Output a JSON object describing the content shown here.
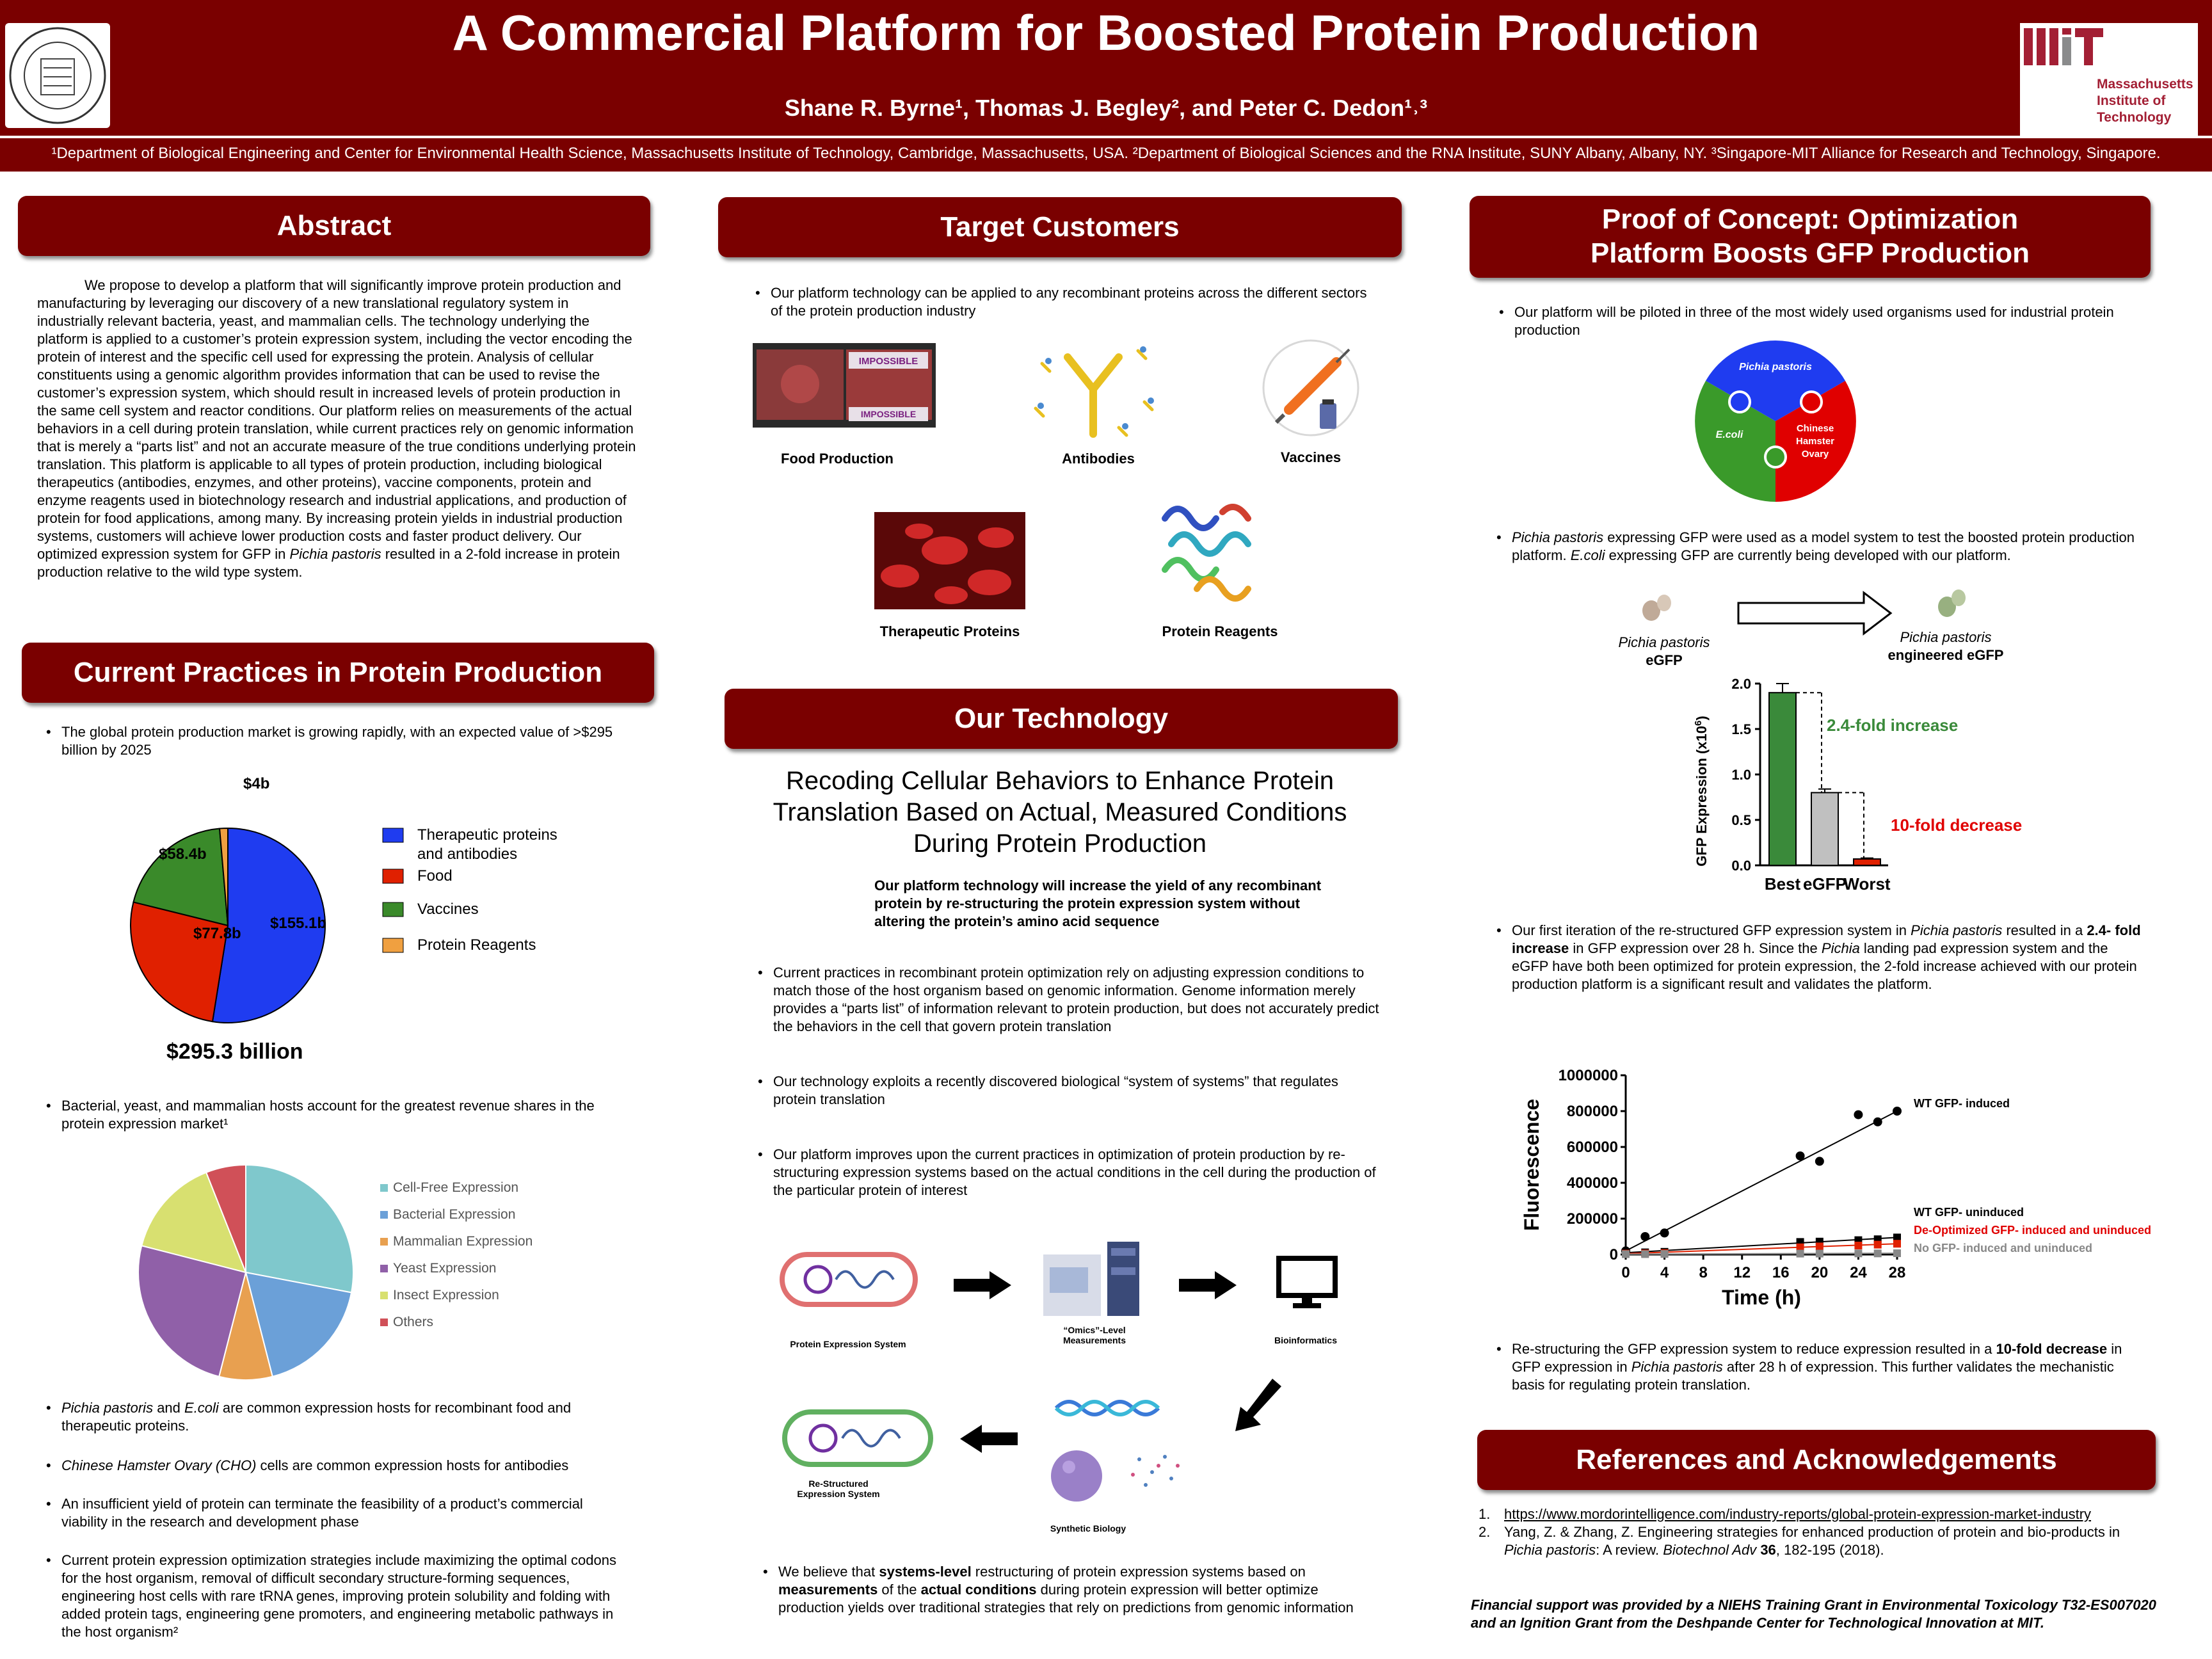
{
  "header": {
    "title": "A Commercial Platform for Boosted Protein Production",
    "authors": "Shane R. Byrne¹, Thomas J. Begley², and  Peter C. Dedon¹˒³",
    "affiliations": "¹Department of Biological Engineering and Center for Environmental Health Science, Massachusetts Institute of Technology, Cambridge, Massachusetts, USA.  ²Department of Biological Sciences and the RNA Institute, SUNY Albany, Albany, NY.  ³Singapore-MIT Alliance for Research and Technology, Singapore.",
    "mit_name_1": "Massachusetts",
    "mit_name_2": "Institute of",
    "mit_name_3": "Technology",
    "seal_text": "MASSACHUSETTS INSTITUTE OF TECHNOLOGY"
  },
  "abstract": {
    "heading": "Abstract",
    "p1": "We propose to develop a platform that will significantly improve protein production and manufacturing by leveraging our discovery of a new translational regulatory system in industrially relevant bacteria, yeast, and mammalian cells. The technology underlying the platform is applied to a customer’s protein expression system, including the vector encoding the protein of interest and the specific cell used for expressing the protein. Analysis of cellular constituents using a genomic algorithm provides information that can be used to revise the customer’s expression system, which should result in increased levels of protein production in the same cell system and reactor conditions. Our platform relies on measurements of the actual behaviors in a cell during protein translation, while current practices rely on genomic information that is merely a “parts list” and not an accurate measure of the true conditions underlying protein translation. This platform is applicable to all types of protein production, including biological therapeutics (antibodies, enzymes, and other proteins), vaccine components, protein and enzyme reagents used in biotechnology research and industrial applications, and production of protein for food applications, among many. By increasing protein yields in industrial production systems, customers will achieve lower production costs and faster product delivery. Our optimized expression system for GFP in ",
    "p1_italic": "Pichia pastoris",
    "p1_end": " resulted in a 2-fold increase in protein production relative to the wild type system."
  },
  "current": {
    "heading": "Current Practices in Protein Production",
    "bullet1": "The global protein production market is growing rapidly, with an expected value of >$295 billion by 2025",
    "total": "$295.3 billion",
    "bullet2": "Bacterial, yeast, and mammalian hosts account for the greatest revenue shares in the protein expression market¹",
    "b3_i1": "Pichia pastoris",
    "b3_mid": " and ",
    "b3_i2": "E.coli",
    "b3_end": " are common expression hosts for recombinant food and therapeutic proteins.",
    "b4_i": "Chinese Hamster Ovary (CHO)",
    "b4_end": " cells are common expression hosts for antibodies",
    "bullet5": "An insufficient yield of protein can terminate the feasibility of a product’s commercial viability in the research and development phase",
    "bullet6": "Current protein expression optimization strategies include maximizing the optimal codons for the host organism, removal of difficult secondary structure-forming sequences, engineering host cells with rare tRNA genes, improving protein solubility and folding with added protein tags, engineering gene promoters, and engineering metabolic pathways in the host organism²"
  },
  "target": {
    "heading": "Target Customers",
    "bullet1": "Our platform technology can be applied to any recombinant proteins across the different sectors of the protein production industry",
    "label_food": "Food Production",
    "label_antibodies": "Antibodies",
    "label_vaccines": "Vaccines",
    "label_therapeutic": "Therapeutic Proteins",
    "label_reagents": "Protein Reagents",
    "impossible_1": "IMPOSSIBLE",
    "impossible_2": "IMPOSSIBLE"
  },
  "technology": {
    "heading": "Our Technology",
    "subtitle": "Recoding Cellular Behaviors to Enhance Protein Translation Based on Actual, Measured Conditions During Protein Production",
    "bold_statement": "Our platform technology will increase the yield of any recombinant protein by re-structuring the protein expression system without altering the protein’s amino acid sequence",
    "bullet1": "Current practices in recombinant protein optimization rely on adjusting expression conditions to match those of the host organism based on genomic information. Genome information merely provides a “parts list” of information relevant to protein production, but does not accurately predict the behaviors in the cell that govern protein translation",
    "bullet2": "Our technology exploits a recently discovered biological “system of systems” that regulates protein translation",
    "bullet3": "Our platform improves upon the current practices in optimization of protein production by re-structuring expression systems based on the actual conditions in the cell during the production of the particular protein of interest",
    "flow_pes": "Protein Expression System",
    "flow_omics_1": "“Omics”-Level",
    "flow_omics_2": "Measurements",
    "flow_bioinf": "Bioinformatics",
    "flow_restructured_1": "Re-Structured",
    "flow_restructured_2": "Expression System",
    "flow_synbio": "Synthetic Biology",
    "b4_a": "We believe that ",
    "b4_b": "systems-level",
    "b4_c": " restructuring of protein expression systems based on ",
    "b4_d": "measurements",
    "b4_e": " of the ",
    "b4_f": "actual conditions",
    "b4_g": " during protein expression will better optimize production yields over traditional strategies that rely on predictions from genomic information"
  },
  "proof": {
    "heading_1": "Proof of Concept: Optimization",
    "heading_2": "Platform Boosts GFP Production",
    "bullet1": "Our platform will be piloted in three of the most widely used organisms used for industrial protein production",
    "puzzle_pichia": "Pichia pastoris",
    "puzzle_ecoli": "E.coli",
    "puzzle_cho_1": "Chinese",
    "puzzle_cho_2": "Hamster",
    "puzzle_cho_3": "Ovary",
    "b2_i1": "Pichia pastoris",
    "b2_mid": " expressing GFP were used as a model system to test the boosted protein production platform. ",
    "b2_i2": "E.coli",
    "b2_end": " expressing GFP are currently being developed with our platform.",
    "left_org": "Pichia pastoris",
    "left_label": "eGFP",
    "right_org": "Pichia pastoris",
    "right_label": "engineered eGFP",
    "increase_label": "2.4-fold increase",
    "decrease_label": "10-fold decrease",
    "b3_a": "Our first iteration of the re-structured GFP expression system in ",
    "b3_i1": "Pichia pastoris",
    "b3_b": " resulted in a ",
    "b3_bold": "2.4- fold increase",
    "b3_c": " in GFP expression over 28 h. Since the ",
    "b3_i2": "Pichia",
    "b3_d": " landing pad expression system and the eGFP have both been optimized for protein expression, the 2-fold increase achieved with our protein production platform is a significant result and validates the platform.",
    "b4_a": "Re-structuring the GFP expression system to reduce expression resulted in a ",
    "b4_bold": "10-fold decrease",
    "b4_b": " in GFP expression in ",
    "b4_i": "Pichia pastoris",
    "b4_c": " after 28 h of expression. This further validates the mechanistic basis for regulating protein translation."
  },
  "references": {
    "heading": "References and Acknowledgements",
    "ref1_num": "1.",
    "ref1": "https://www.mordorintelligence.com/industry-reports/global-protein-expression-market-industry",
    "ref2_num": "2.",
    "ref2_a": "Yang, Z. & Zhang, Z. Engineering strategies for enhanced production of protein and bio-products in ",
    "ref2_i": "Pichia pastoris",
    "ref2_b": ": A review. ",
    "ref2_i2": "Biotechnol Adv",
    "ref2_c": " 36",
    "ref2_d": ", 182-195 (2018).",
    "funding": "Financial support was provided by a NIEHS Training Grant in Environmental Toxicology T32-ES007020 and an Ignition Grant from the Deshpande Center for Technological Innovation at MIT."
  },
  "colors": {
    "maroon": "#7a0000",
    "blue": "#1f3cf0",
    "red": "#e02000",
    "green": "#3a8a2a",
    "orange": "#f0a040"
  },
  "chart_data": [
    {
      "type": "pie",
      "categories": [
        "Therapeutic proteins and antibodies",
        "Food",
        "Vaccines",
        "Protein Reagents"
      ],
      "values": [
        155.1,
        77.8,
        58.4,
        4
      ],
      "value_labels": [
        "$155.1b",
        "$77.8b",
        "$58.4b",
        "$4b"
      ],
      "colors": [
        "#1f3cf0",
        "#e02000",
        "#3a8a2a",
        "#f0a040"
      ],
      "legend": "right"
    },
    {
      "type": "pie",
      "categories": [
        "Cell-Free Expression",
        "Bacterial Expression",
        "Mammalian Expression",
        "Yeast Expression",
        "Insect Expression",
        "Others"
      ],
      "values": [
        28,
        18,
        8,
        25,
        15,
        6
      ],
      "colors": [
        "#7fc8cc",
        "#6ba0d8",
        "#e8a050",
        "#9060a8",
        "#d8e070",
        "#d05058"
      ],
      "legend": "right"
    },
    {
      "type": "bar",
      "categories": [
        "Best",
        "eGFP",
        "Worst"
      ],
      "values": [
        1.9,
        0.8,
        0.07
      ],
      "errors": [
        0.1,
        0.04,
        0.01
      ],
      "colors": [
        "#3a8a3a",
        "#c0c0c0",
        "#e02000"
      ],
      "ylabel_main": "GFP Expression (x10",
      "ylabel_sup": "6",
      "ylabel_end": ")",
      "ylim": [
        0,
        2.0
      ],
      "yticks": [
        "0.0",
        "0.5",
        "1.0",
        "1.5",
        "2.0"
      ]
    },
    {
      "type": "line",
      "xlabel": "Time (h)",
      "ylabel": "Fluorescence",
      "xlim": [
        0,
        28
      ],
      "ylim": [
        0,
        1000000
      ],
      "xticks": [
        "0",
        "4",
        "8",
        "12",
        "16",
        "20",
        "24",
        "28"
      ],
      "yticks": [
        "0",
        "200000",
        "400000",
        "600000",
        "800000",
        "1000000"
      ],
      "series": [
        {
          "name": "WT GFP- induced",
          "color": "#000000",
          "x": [
            0,
            2,
            4,
            18,
            20,
            24,
            26,
            28
          ],
          "y": [
            20000,
            100000,
            120000,
            550000,
            520000,
            780000,
            740000,
            800000
          ]
        },
        {
          "name": "WT GFP- uninduced",
          "color": "#000000",
          "x": [
            0,
            2,
            4,
            18,
            20,
            24,
            26,
            28
          ],
          "y": [
            10000,
            12000,
            15000,
            70000,
            72000,
            80000,
            85000,
            95000
          ]
        },
        {
          "name": "De-Optimized GFP- induced and uninduced",
          "color": "#e02000",
          "x": [
            0,
            2,
            4,
            18,
            20,
            24,
            26,
            28
          ],
          "y": [
            5000,
            6000,
            8000,
            40000,
            45000,
            50000,
            55000,
            60000
          ]
        },
        {
          "name": "No GFP- induced and uninduced",
          "color": "#888888",
          "x": [
            0,
            2,
            4,
            18,
            20,
            24,
            26,
            28
          ],
          "y": [
            2000,
            2000,
            3000,
            5000,
            5000,
            6000,
            6000,
            7000
          ]
        }
      ]
    }
  ]
}
